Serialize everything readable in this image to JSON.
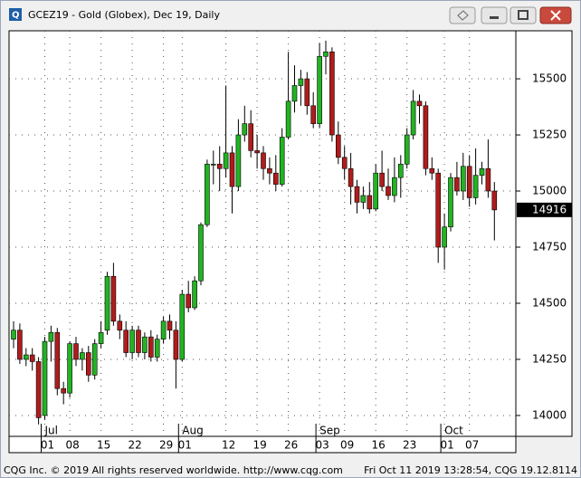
{
  "window": {
    "title": "GCEZ19 - Gold (Globex), Dec 19, Daily"
  },
  "chart_data": {
    "type": "candlestick",
    "categories": [
      null,
      null,
      null,
      null,
      null,
      "01",
      null,
      null,
      null,
      "08",
      null,
      null,
      null,
      null,
      "15",
      null,
      null,
      null,
      null,
      "22",
      null,
      null,
      null,
      null,
      "29",
      null,
      null,
      "01",
      null,
      null,
      null,
      null,
      null,
      null,
      "12",
      null,
      null,
      null,
      null,
      "19",
      null,
      null,
      null,
      null,
      "26",
      null,
      null,
      null,
      null,
      "03",
      null,
      null,
      null,
      "09",
      null,
      null,
      null,
      null,
      "16",
      null,
      null,
      null,
      null,
      "23",
      null,
      null,
      null,
      null,
      null,
      "01",
      null,
      null,
      null,
      "07",
      null,
      null,
      null,
      null
    ],
    "months": [
      {
        "index": 5,
        "label": "Jul"
      },
      {
        "index": 27,
        "label": "Aug"
      },
      {
        "index": 49,
        "label": "Sep"
      },
      {
        "index": 69,
        "label": "Oct"
      }
    ],
    "open": [
      14340,
      14380,
      14250,
      14270,
      14240,
      14000,
      14330,
      14370,
      14120,
      14100,
      14320,
      14250,
      14280,
      14180,
      14320,
      14380,
      14620,
      14420,
      14380,
      14280,
      14380,
      14280,
      14350,
      14260,
      14340,
      14420,
      14380,
      14250,
      14540,
      14480,
      14600,
      14850,
      15120,
      15120,
      15100,
      15170,
      15020,
      15250,
      15300,
      15180,
      15170,
      15100,
      15080,
      15030,
      15240,
      15400,
      15470,
      15500,
      15380,
      15300,
      15600,
      15620,
      15250,
      15150,
      15100,
      15020,
      14950,
      14980,
      14920,
      15080,
      15020,
      14980,
      15060,
      15120,
      15250,
      15400,
      15380,
      15100,
      15080,
      14750,
      14840,
      15060,
      15000,
      15110,
      14970,
      15070,
      15100,
      15000
    ],
    "high": [
      14420,
      14410,
      14300,
      14300,
      14260,
      14350,
      14400,
      14390,
      14150,
      14330,
      14350,
      14300,
      14310,
      14340,
      14420,
      14640,
      14680,
      14450,
      14420,
      14400,
      14400,
      14370,
      14380,
      14360,
      14440,
      14450,
      14420,
      14560,
      14600,
      14620,
      14860,
      15140,
      15180,
      15200,
      15470,
      15200,
      15320,
      15380,
      15360,
      15250,
      15200,
      15150,
      15160,
      15280,
      15620,
      15560,
      15540,
      15530,
      15440,
      15660,
      15670,
      15640,
      15310,
      15200,
      15170,
      15050,
      15020,
      15040,
      15120,
      15180,
      15100,
      15150,
      15160,
      15280,
      15450,
      15430,
      15400,
      15150,
      15100,
      14900,
      15080,
      15130,
      15170,
      15160,
      15190,
      15130,
      15230,
      15040
    ],
    "low": [
      14300,
      14230,
      14220,
      14200,
      13960,
      13980,
      14240,
      14090,
      14050,
      14080,
      14220,
      14200,
      14150,
      14160,
      14300,
      14360,
      14400,
      14340,
      14260,
      14250,
      14260,
      14250,
      14240,
      14240,
      14320,
      14340,
      14120,
      14240,
      14460,
      14470,
      14580,
      14840,
      15030,
      15000,
      15060,
      14900,
      15000,
      15220,
      15150,
      15100,
      15050,
      15030,
      15000,
      15020,
      15230,
      15350,
      15380,
      15340,
      15280,
      15280,
      15520,
      15220,
      15120,
      15050,
      14940,
      14900,
      14920,
      14900,
      14910,
      15000,
      14960,
      14950,
      14970,
      15100,
      15230,
      15300,
      15070,
      15050,
      14680,
      14650,
      14820,
      14980,
      14960,
      14930,
      14940,
      15030,
      14970,
      14780
    ],
    "close": [
      14380,
      14250,
      14270,
      14240,
      13990,
      14330,
      14370,
      14120,
      14100,
      14320,
      14250,
      14280,
      14180,
      14320,
      14370,
      14620,
      14420,
      14380,
      14280,
      14380,
      14280,
      14350,
      14260,
      14340,
      14420,
      14380,
      14250,
      14540,
      14480,
      14600,
      14850,
      15120,
      15120,
      15100,
      15170,
      15020,
      15250,
      15300,
      15180,
      15170,
      15100,
      15080,
      15030,
      15240,
      15400,
      15470,
      15500,
      15380,
      15300,
      15600,
      15620,
      15250,
      15150,
      15100,
      15020,
      14950,
      14980,
      14920,
      15080,
      15020,
      14980,
      15060,
      15120,
      15250,
      15400,
      15380,
      15100,
      15080,
      14750,
      14840,
      15060,
      15000,
      15110,
      14970,
      15070,
      15100,
      15000,
      14916
    ],
    "up_color": "#22b422",
    "down_color": "#b01c1c",
    "ylim": [
      13907,
      15714
    ],
    "yticks": [
      14000,
      14250,
      14500,
      14750,
      15000,
      15250,
      15500
    ],
    "grid": true
  },
  "footer": {
    "left": "CQG Inc. © 2019 All rights reserved worldwide. http://www.cqg.com",
    "right": "Fri Oct 11 2019 13:28:54, CQG 19.12.8114"
  }
}
